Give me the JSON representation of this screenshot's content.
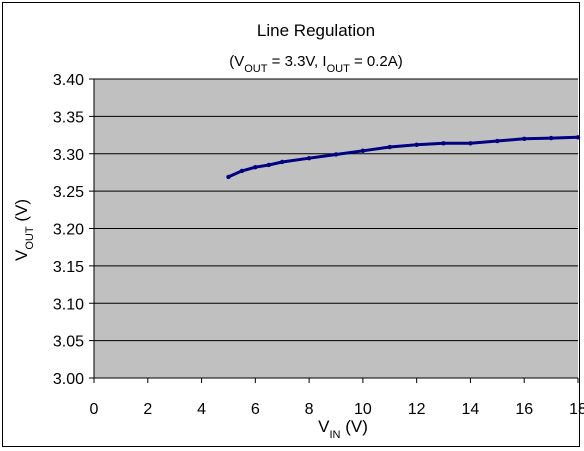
{
  "chart_data": {
    "type": "line",
    "title": "Line Regulation",
    "subtitle": {
      "parts": [
        "(V",
        "OUT",
        " = 3.3V, I",
        "OUT",
        " = 0.2A)"
      ]
    },
    "xlabel": {
      "main": "V",
      "sub": "IN",
      "unit": " (V)"
    },
    "ylabel": {
      "main": "V",
      "sub": "OUT",
      "unit": " (V)"
    },
    "xlim": [
      0,
      18
    ],
    "ylim": [
      3.0,
      3.4
    ],
    "x_ticks": [
      "0",
      "2",
      "4",
      "6",
      "8",
      "10",
      "12",
      "14",
      "16",
      "18"
    ],
    "y_ticks": [
      "3.00",
      "3.05",
      "3.10",
      "3.15",
      "3.20",
      "3.25",
      "3.30",
      "3.35",
      "3.40"
    ],
    "grid": true,
    "series": [
      {
        "color": "#000080",
        "x": [
          5,
          5.5,
          6,
          6.5,
          7,
          8,
          9,
          10,
          11,
          12,
          13,
          14,
          15,
          16,
          17,
          18
        ],
        "y": [
          3.269,
          3.277,
          3.282,
          3.285,
          3.289,
          3.294,
          3.299,
          3.304,
          3.309,
          3.312,
          3.314,
          3.314,
          3.317,
          3.32,
          3.321,
          3.322
        ]
      }
    ],
    "colors": {
      "plot_bg": "#C0C0C0",
      "grid": "#000000",
      "line": "#000080"
    }
  }
}
